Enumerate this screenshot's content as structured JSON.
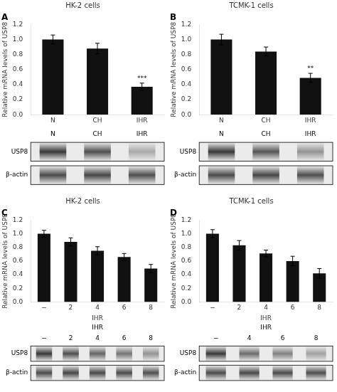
{
  "chart_data": [
    {
      "type": "bar",
      "title": "HK-2 cells",
      "subtitle": "A",
      "categories": [
        "N",
        "CH",
        "IHR"
      ],
      "values": [
        1.0,
        0.88,
        0.37
      ],
      "errors": [
        0.06,
        0.07,
        0.05
      ],
      "annotations": [
        null,
        null,
        "***"
      ],
      "color": "#111111",
      "ylabel": "Relative mRNA levels of USP8",
      "ylim": [
        0,
        1.2
      ],
      "yticks": [
        {
          "value": 0,
          "label": "0.0"
        },
        0.2,
        0.4,
        0.6,
        0.8,
        {
          "value": 1.0,
          "label": "1.0"
        },
        1.2
      ],
      "grid": false
    },
    {
      "type": "heatmap",
      "x": [
        "N",
        "CH",
        "IHR"
      ],
      "y": [
        "USP8",
        "β-actin"
      ],
      "values": [
        [
          1.0,
          0.88,
          0.37
        ],
        [
          0.9,
          0.92,
          0.88
        ]
      ]
    },
    {
      "type": "bar",
      "title": "TCMK-1 cells",
      "subtitle": "B",
      "categories": [
        "N",
        "CH",
        "IHR"
      ],
      "values": [
        1.0,
        0.84,
        0.49
      ],
      "errors": [
        0.07,
        0.06,
        0.06
      ],
      "annotations": [
        null,
        null,
        "**"
      ],
      "color": "#111111",
      "ylabel": "Relative mRNA levels of USP8",
      "ylim": [
        0,
        1.2
      ],
      "yticks": [
        {
          "value": 0,
          "label": "0.0"
        },
        0.2,
        0.4,
        0.6,
        0.8,
        {
          "value": 1.0,
          "label": "1.0"
        },
        1.2
      ],
      "grid": false
    },
    {
      "type": "heatmap",
      "x": [
        "N",
        "CH",
        "IHR"
      ],
      "y": [
        "USP8",
        "β-actin"
      ],
      "values": [
        [
          1.0,
          0.84,
          0.49
        ],
        [
          0.9,
          0.92,
          0.88
        ]
      ]
    },
    {
      "type": "bar",
      "title": "HK-2 cells",
      "subtitle": "C",
      "categories": [
        "−",
        "2",
        "4",
        "6",
        "8"
      ],
      "values": [
        1.0,
        0.88,
        0.75,
        0.66,
        0.49
      ],
      "errors": [
        0.05,
        0.06,
        0.06,
        0.05,
        0.06
      ],
      "color": "#111111",
      "xlabel": "IHR",
      "ylabel": "Relative mRNA levels of USP8",
      "ylim": [
        0,
        1.2
      ],
      "yticks": [
        {
          "value": 0,
          "label": "0.0"
        },
        0.2,
        0.4,
        0.6,
        0.8,
        {
          "value": 1.0,
          "label": "1.0"
        },
        1.2
      ],
      "grid": false
    },
    {
      "type": "heatmap",
      "x": [
        "−",
        "2",
        "4",
        "6",
        "8"
      ],
      "y": [
        "USP8",
        "β-actin"
      ],
      "xlabel": "IHR",
      "values": [
        [
          1.0,
          0.88,
          0.75,
          0.66,
          0.49
        ],
        [
          0.9,
          0.92,
          0.91,
          0.9,
          0.88
        ]
      ]
    },
    {
      "type": "bar",
      "title": "TCMK-1 cells",
      "subtitle": "D",
      "categories": [
        "−",
        "2",
        "4",
        "6",
        "8"
      ],
      "values": [
        1.0,
        0.83,
        0.71,
        0.6,
        0.42
      ],
      "errors": [
        0.06,
        0.07,
        0.05,
        0.07,
        0.07
      ],
      "color": "#111111",
      "xlabel": "IHR",
      "ylabel": "Relative mRNA levels of USP8",
      "ylim": [
        0,
        1.2
      ],
      "yticks": [
        {
          "value": 0,
          "label": "0.0"
        },
        0.2,
        0.4,
        0.6,
        0.8,
        {
          "value": 1.0,
          "label": "1.0"
        },
        1.2
      ],
      "grid": false
    },
    {
      "type": "heatmap",
      "x": [
        "−",
        "4",
        "6",
        "8"
      ],
      "y": [
        "USP8",
        "β-actin"
      ],
      "xlabel": "IHR",
      "values": [
        [
          1.0,
          0.71,
          0.6,
          0.42
        ],
        [
          0.9,
          0.91,
          0.9,
          0.88
        ]
      ]
    }
  ]
}
